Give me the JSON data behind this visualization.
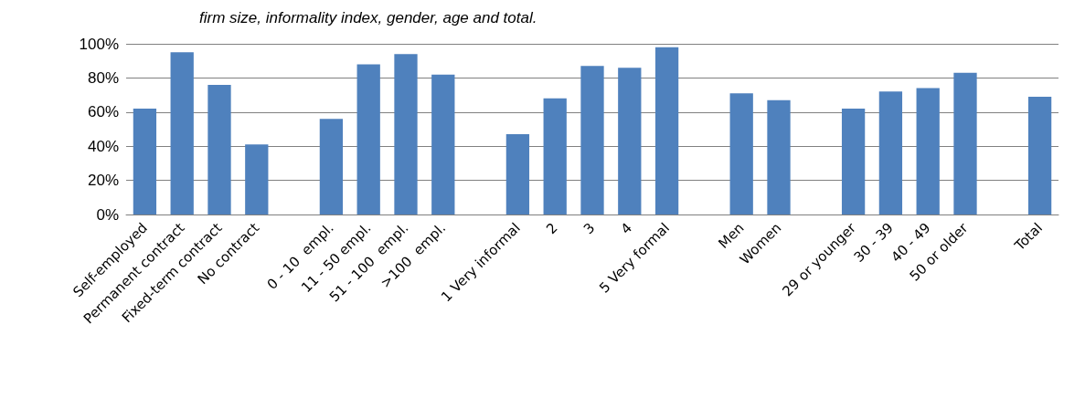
{
  "chart_data": {
    "type": "bar",
    "title": "firm size, informality index, gender, age and total.",
    "categories": [
      "Self-employed",
      "Permanent contract",
      "Fixed-term contract",
      "No contract",
      null,
      "0 - 10  empl.",
      "11 - 50 empl.",
      "51 - 100  empl.",
      ">100  empl.",
      null,
      "1 Very informal",
      "2",
      "3",
      "4",
      "5 Very formal",
      null,
      "Men",
      "Women",
      null,
      "29 or younger",
      "30 - 39",
      "40 - 49",
      "50 or older",
      null,
      "Total"
    ],
    "values": [
      62,
      95,
      76,
      41,
      null,
      56,
      88,
      94,
      82,
      null,
      47,
      68,
      87,
      86,
      98,
      null,
      71,
      67,
      null,
      62,
      72,
      74,
      83,
      null,
      69
    ],
    "color": "#4f81bd",
    "ylim": [
      0,
      100
    ],
    "yticks": [
      {
        "value": 0,
        "label": "0%"
      },
      {
        "value": 20,
        "label": "20%"
      },
      {
        "value": 40,
        "label": "40%"
      },
      {
        "value": 60,
        "label": "60%"
      },
      {
        "value": 80,
        "label": "80%"
      },
      {
        "value": 100,
        "label": "100%"
      }
    ],
    "grid": "y"
  }
}
